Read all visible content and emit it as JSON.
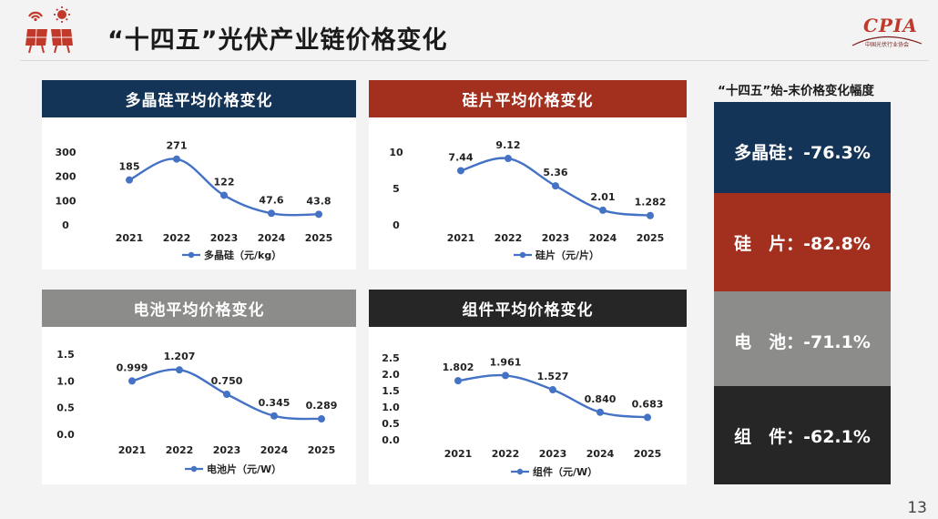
{
  "header": {
    "title": "“十四五”光伏产业链价格变化",
    "logo_text": "CPIA",
    "logo_subtext": "中国光伏行业协会"
  },
  "colors": {
    "navy": "#143457",
    "rust": "#a3301f",
    "gray": "#8c8c8a",
    "black": "#262626",
    "line": "#4472c4"
  },
  "chart_data": [
    {
      "type": "line",
      "title": "多晶硅平均价格变化",
      "title_color": "#143457",
      "x": [
        "2021",
        "2022",
        "2023",
        "2024",
        "2025"
      ],
      "series": [
        {
          "name": "多晶硅（元/kg）",
          "values": [
            185,
            271,
            122,
            47.6,
            43.8
          ],
          "labels": [
            "185",
            "271",
            "122",
            "47.6",
            "43.8"
          ]
        }
      ],
      "yticks": [
        "0",
        "100",
        "200",
        "300"
      ],
      "ylim": [
        0,
        300
      ],
      "grid": false,
      "legend": "bottom"
    },
    {
      "type": "line",
      "title": "硅片平均价格变化",
      "title_color": "#a3301f",
      "x": [
        "2021",
        "2022",
        "2023",
        "2024",
        "2025"
      ],
      "series": [
        {
          "name": "硅片（元/片）",
          "values": [
            7.44,
            9.12,
            5.36,
            2.01,
            1.282
          ],
          "labels": [
            "7.44",
            "9.12",
            "5.36",
            "2.01",
            "1.282"
          ]
        }
      ],
      "yticks": [
        "0",
        "5",
        "10"
      ],
      "ylim": [
        0,
        10
      ],
      "grid": false,
      "legend": "bottom"
    },
    {
      "type": "line",
      "title": "电池平均价格变化",
      "title_color": "#8c8c8a",
      "x": [
        "2021",
        "2022",
        "2023",
        "2024",
        "2025"
      ],
      "series": [
        {
          "name": "电池片（元/W）",
          "values": [
            0.999,
            1.207,
            0.75,
            0.345,
            0.289
          ],
          "labels": [
            "0.999",
            "1.207",
            "0.750",
            "0.345",
            "0.289"
          ]
        }
      ],
      "yticks": [
        "0.0",
        "0.5",
        "1.0",
        "1.5"
      ],
      "ylim": [
        0,
        1.5
      ],
      "grid": false,
      "legend": "bottom"
    },
    {
      "type": "line",
      "title": "组件平均价格变化",
      "title_color": "#262626",
      "x": [
        "2021",
        "2022",
        "2023",
        "2024",
        "2025"
      ],
      "series": [
        {
          "name": "组件（元/W）",
          "values": [
            1.802,
            1.961,
            1.527,
            0.84,
            0.683
          ],
          "labels": [
            "1.802",
            "1.961",
            "1.527",
            "0.840",
            "0.683"
          ]
        }
      ],
      "yticks": [
        "0.0",
        "0.5",
        "1.0",
        "1.5",
        "2.0",
        "2.5"
      ],
      "ylim": [
        0,
        2.5
      ],
      "grid": false,
      "legend": "bottom"
    }
  ],
  "summary": {
    "title": "“十四五”始-末价格变化幅度",
    "items": [
      {
        "label": "多晶硅：-76.3%",
        "color": "#143457"
      },
      {
        "label": "硅　片：-82.8%",
        "color": "#a3301f"
      },
      {
        "label": "电　池：-71.1%",
        "color": "#8c8c8a"
      },
      {
        "label": "组　件：-62.1%",
        "color": "#262626"
      }
    ]
  },
  "page_number": "13"
}
